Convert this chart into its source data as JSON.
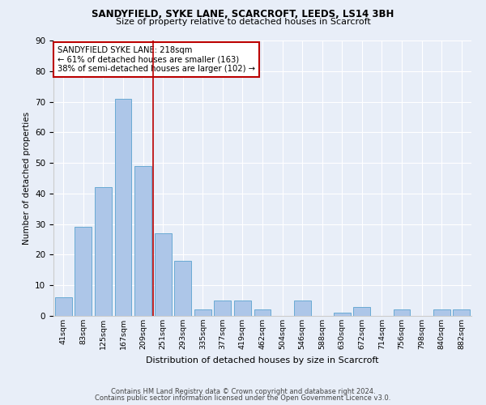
{
  "title1": "SANDYFIELD, SYKE LANE, SCARCROFT, LEEDS, LS14 3BH",
  "title2": "Size of property relative to detached houses in Scarcroft",
  "xlabel": "Distribution of detached houses by size in Scarcroft",
  "ylabel": "Number of detached properties",
  "categories": [
    "41sqm",
    "83sqm",
    "125sqm",
    "167sqm",
    "209sqm",
    "251sqm",
    "293sqm",
    "335sqm",
    "377sqm",
    "419sqm",
    "462sqm",
    "504sqm",
    "546sqm",
    "588sqm",
    "630sqm",
    "672sqm",
    "714sqm",
    "756sqm",
    "798sqm",
    "840sqm",
    "882sqm"
  ],
  "values": [
    6,
    29,
    42,
    71,
    49,
    27,
    18,
    2,
    5,
    5,
    2,
    0,
    5,
    0,
    1,
    3,
    0,
    2,
    0,
    2,
    2
  ],
  "bar_color": "#adc6e8",
  "bar_edge_color": "#6aaad4",
  "vline_x": 4.5,
  "vline_color": "#bb0000",
  "annotation_text": "SANDYFIELD SYKE LANE: 218sqm\n← 61% of detached houses are smaller (163)\n38% of semi-detached houses are larger (102) →",
  "annotation_box_color": "#ffffff",
  "annotation_box_edge": "#bb0000",
  "ylim": [
    0,
    90
  ],
  "yticks": [
    0,
    10,
    20,
    30,
    40,
    50,
    60,
    70,
    80,
    90
  ],
  "footer1": "Contains HM Land Registry data © Crown copyright and database right 2024.",
  "footer2": "Contains public sector information licensed under the Open Government Licence v3.0.",
  "bg_color": "#e8eef8"
}
